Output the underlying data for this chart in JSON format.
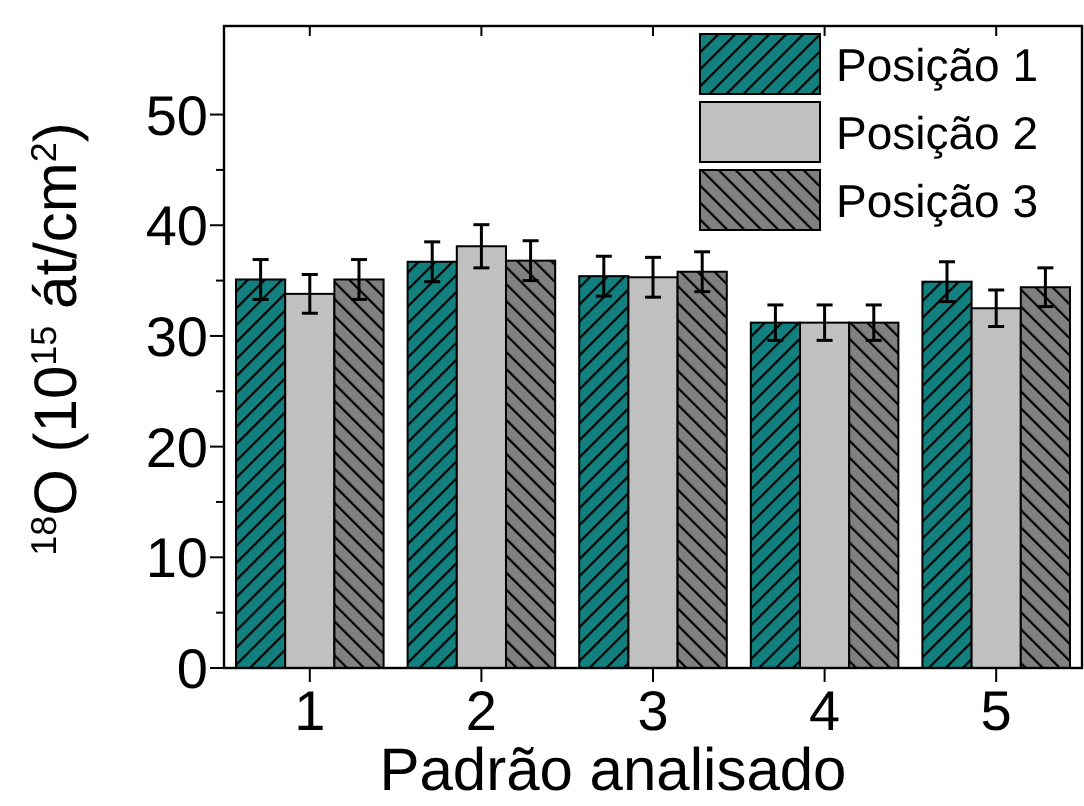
{
  "chart_data": {
    "type": "bar",
    "xlabel": "Padrão analisado",
    "ylabel": "$^{18}$O (10$^{15}$ át/cm$^{2}$)",
    "categories": [
      "1",
      "2",
      "3",
      "4",
      "5"
    ],
    "series": [
      {
        "name": "Posição 1",
        "color": "#138080",
        "values": [
          35.1,
          36.7,
          35.4,
          31.2,
          34.9
        ],
        "errors": [
          1.8,
          1.8,
          1.8,
          1.6,
          1.8
        ]
      },
      {
        "name": "Posição 2",
        "color": "#c0c0c0",
        "values": [
          33.8,
          38.1,
          35.3,
          31.2,
          32.5
        ],
        "errors": [
          1.75,
          1.95,
          1.8,
          1.6,
          1.65
        ]
      },
      {
        "name": "Posição 3",
        "color": "#808080",
        "values": [
          35.1,
          36.8,
          35.8,
          31.2,
          34.4
        ],
        "errors": [
          1.8,
          1.8,
          1.8,
          1.6,
          1.75
        ]
      }
    ],
    "ylim": [
      0,
      58
    ],
    "yticks": [
      0,
      10,
      20,
      30,
      40,
      50
    ],
    "grid": false,
    "legend": "top right"
  }
}
